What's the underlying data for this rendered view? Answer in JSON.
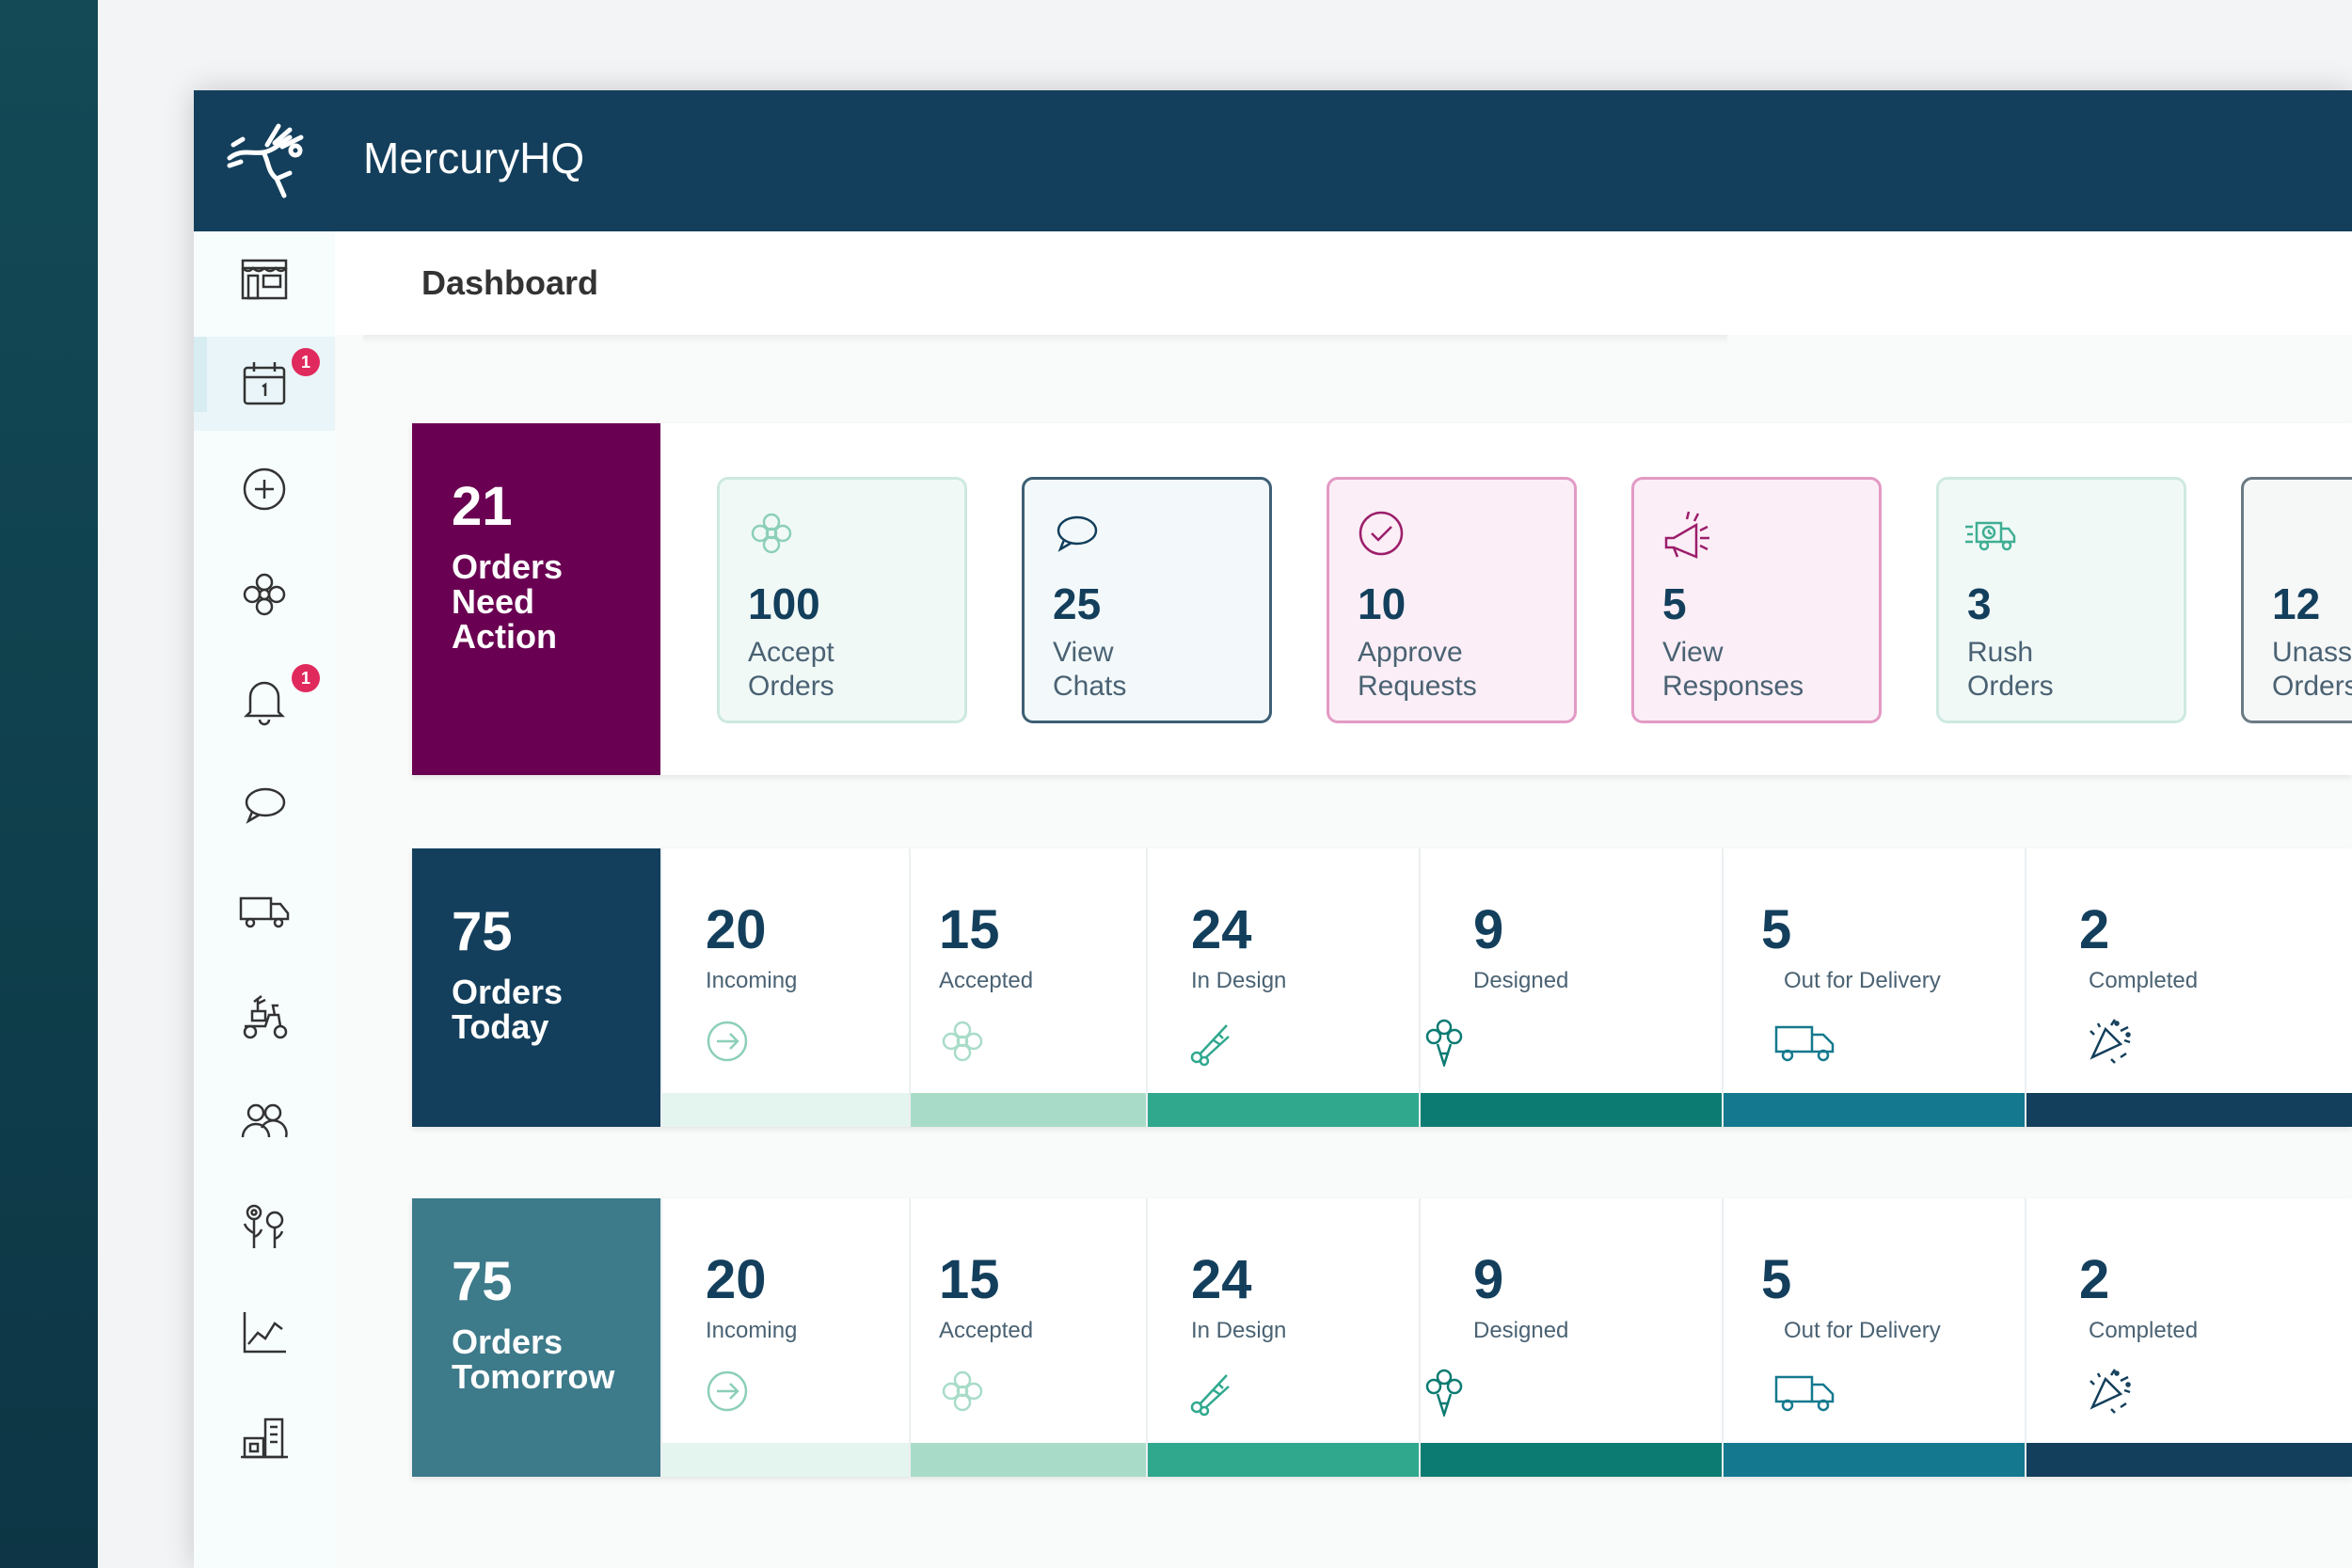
{
  "app": {
    "title": "MercuryHQ"
  },
  "page": {
    "title": "Dashboard"
  },
  "sidebar": {
    "items": [
      {
        "name": "storefront",
        "icon": "storefront-icon"
      },
      {
        "name": "calendar",
        "icon": "calendar-icon",
        "badge": "1",
        "active": true
      },
      {
        "name": "create-order",
        "icon": "plus-circle-icon"
      },
      {
        "name": "flower",
        "icon": "flower-icon"
      },
      {
        "name": "notifications",
        "icon": "bell-icon",
        "badge": "1"
      },
      {
        "name": "chats",
        "icon": "chat-bubble-icon"
      },
      {
        "name": "delivery",
        "icon": "truck-icon"
      },
      {
        "name": "driver",
        "icon": "scooter-icon"
      },
      {
        "name": "customers",
        "icon": "people-icon"
      },
      {
        "name": "products",
        "icon": "flowers-icon"
      },
      {
        "name": "reports",
        "icon": "line-chart-icon"
      },
      {
        "name": "shop-settings",
        "icon": "building-icon"
      }
    ]
  },
  "needs_action": {
    "count": "21",
    "label": "Orders Need Action",
    "cards": [
      {
        "count": "100",
        "label": "Accept Orders",
        "icon": "flower-icon",
        "bg": "#f1f9f7",
        "border": "#cde9e1"
      },
      {
        "count": "25",
        "label": "View Chats",
        "icon": "chat-bubble-icon",
        "bg": "#f3f9fa",
        "border": "#3e5f74"
      },
      {
        "count": "10",
        "label": "Approve Requests",
        "icon": "check-circle-icon",
        "bg": "#fbeef6",
        "border": "#e39ac5"
      },
      {
        "count": "5",
        "label": "View Responses",
        "icon": "megaphone-icon",
        "bg": "#fbeef6",
        "border": "#e39ac5"
      },
      {
        "count": "3",
        "label": "Rush Orders",
        "icon": "rush-truck-icon",
        "bg": "#f1f9f7",
        "border": "#cde9e1"
      },
      {
        "count": "12",
        "label": "Unass Orders",
        "icon": "",
        "bg": "#f6f7f7",
        "border": "#6b7b84"
      }
    ]
  },
  "today": {
    "count": "75",
    "label": "Orders Today",
    "statuses": [
      {
        "count": "20",
        "label": "Incoming",
        "icon": "arrow-circle-icon",
        "bar": "#e4f5ef"
      },
      {
        "count": "15",
        "label": "Accepted",
        "icon": "flower-icon",
        "bar": "#a9dcc8"
      },
      {
        "count": "24",
        "label": "In Design",
        "icon": "shears-icon",
        "bar": "#2fa88e"
      },
      {
        "count": "9",
        "label": "Designed",
        "icon": "bouquet-icon",
        "bar": "#0c7b72"
      },
      {
        "count": "5",
        "label": "Out for Delivery",
        "icon": "truck-icon",
        "bar": "#14798e"
      },
      {
        "count": "2",
        "label": "Completed",
        "icon": "confetti-icon",
        "bar": "#133f5c"
      }
    ]
  },
  "tomorrow": {
    "count": "75",
    "label": "Orders Tomorrow",
    "statuses": [
      {
        "count": "20",
        "label": "Incoming",
        "icon": "arrow-circle-icon",
        "bar": "#e4f5ef"
      },
      {
        "count": "15",
        "label": "Accepted",
        "icon": "flower-icon",
        "bar": "#a9dcc8"
      },
      {
        "count": "24",
        "label": "In Design",
        "icon": "shears-icon",
        "bar": "#2fa88e"
      },
      {
        "count": "9",
        "label": "Designed",
        "icon": "bouquet-icon",
        "bar": "#0c7b72"
      },
      {
        "count": "5",
        "label": "Out for Delivery",
        "icon": "truck-icon",
        "bar": "#14798e"
      },
      {
        "count": "2",
        "label": "Completed",
        "icon": "confetti-icon",
        "bar": "#133f5c"
      }
    ]
  },
  "colors": {
    "needs_action_head": "#6a0052",
    "today_head": "#133f5c",
    "tomorrow_head": "#3d7a8a",
    "topbar": "#133f5c"
  }
}
